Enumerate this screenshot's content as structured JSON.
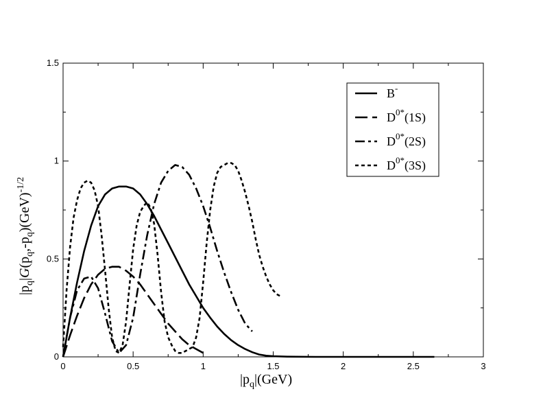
{
  "chart_data": {
    "type": "line",
    "xlabel": {
      "main": "|p",
      "sub": "q",
      "tail": "|(GeV)"
    },
    "ylabel": {
      "a": "|p",
      "a_sub": "q",
      "b": "|",
      "G": "G",
      "c": "(p",
      "c_sub": "q",
      "d": ",-p",
      "d_sub": "q",
      "e": ")(GeV)",
      "e_sup": "-1/2"
    },
    "xlim": [
      0,
      3
    ],
    "ylim": [
      0,
      1.5
    ],
    "x_ticks": [
      "0",
      "0.5",
      "1",
      "1.5",
      "2",
      "2.5",
      "3"
    ],
    "y_ticks": [
      "0",
      "0.5",
      "1",
      "1.5"
    ],
    "grid": false,
    "legend_position": "top-right",
    "series": [
      {
        "name": {
          "base": "B",
          "sup": "-",
          "tail": ""
        },
        "style": "solid",
        "x": [
          0,
          0.05,
          0.1,
          0.15,
          0.2,
          0.25,
          0.3,
          0.35,
          0.4,
          0.45,
          0.5,
          0.55,
          0.6,
          0.65,
          0.7,
          0.75,
          0.8,
          0.85,
          0.9,
          0.95,
          1.0,
          1.05,
          1.1,
          1.15,
          1.2,
          1.25,
          1.3,
          1.35,
          1.4,
          1.45,
          1.5,
          1.6,
          1.8,
          2.0,
          2.3,
          2.65
        ],
        "values": [
          0,
          0.2,
          0.38,
          0.54,
          0.67,
          0.77,
          0.83,
          0.86,
          0.87,
          0.87,
          0.86,
          0.83,
          0.78,
          0.72,
          0.65,
          0.58,
          0.51,
          0.44,
          0.37,
          0.31,
          0.25,
          0.2,
          0.155,
          0.117,
          0.085,
          0.06,
          0.04,
          0.024,
          0.012,
          0.006,
          0.003,
          0.001,
          0,
          0,
          0,
          0
        ]
      },
      {
        "name": {
          "base": "D",
          "sup": "0*",
          "tail": "(1S)"
        },
        "style": "long-dash",
        "x": [
          0,
          0.05,
          0.1,
          0.15,
          0.2,
          0.25,
          0.3,
          0.35,
          0.4,
          0.45,
          0.5,
          0.55,
          0.6,
          0.65,
          0.7,
          0.75,
          0.8,
          0.85,
          0.9,
          0.95,
          1.0
        ],
        "values": [
          0,
          0.11,
          0.21,
          0.3,
          0.37,
          0.42,
          0.45,
          0.46,
          0.46,
          0.44,
          0.41,
          0.37,
          0.32,
          0.27,
          0.22,
          0.17,
          0.13,
          0.09,
          0.06,
          0.04,
          0.02
        ]
      },
      {
        "name": {
          "base": "D",
          "sup": "0*",
          "tail": "(2S)"
        },
        "style": "dash-dot",
        "x": [
          0,
          0.05,
          0.1,
          0.15,
          0.2,
          0.25,
          0.3,
          0.35,
          0.4,
          0.45,
          0.5,
          0.55,
          0.6,
          0.65,
          0.7,
          0.75,
          0.8,
          0.85,
          0.9,
          0.95,
          1.0,
          1.05,
          1.1,
          1.15,
          1.2,
          1.25,
          1.3,
          1.35
        ],
        "values": [
          0,
          0.2,
          0.34,
          0.4,
          0.41,
          0.35,
          0.22,
          0.08,
          0.02,
          0.06,
          0.2,
          0.42,
          0.62,
          0.78,
          0.89,
          0.95,
          0.98,
          0.97,
          0.93,
          0.86,
          0.77,
          0.66,
          0.54,
          0.43,
          0.33,
          0.24,
          0.17,
          0.13
        ]
      },
      {
        "name": {
          "base": "D",
          "sup": "0*",
          "tail": "(3S)"
        },
        "style": "short-dash",
        "x": [
          0,
          0.025,
          0.05,
          0.075,
          0.1,
          0.125,
          0.15,
          0.175,
          0.2,
          0.225,
          0.25,
          0.275,
          0.3,
          0.325,
          0.35,
          0.375,
          0.4,
          0.425,
          0.45,
          0.475,
          0.5,
          0.525,
          0.55,
          0.575,
          0.6,
          0.625,
          0.65,
          0.675,
          0.7,
          0.725,
          0.75,
          0.775,
          0.8,
          0.825,
          0.85,
          0.875,
          0.9,
          0.925,
          0.95,
          0.975,
          1.0,
          1.025,
          1.05,
          1.075,
          1.1,
          1.125,
          1.15,
          1.175,
          1.2,
          1.225,
          1.25,
          1.275,
          1.3,
          1.325,
          1.35,
          1.375,
          1.4,
          1.425,
          1.45,
          1.475,
          1.5,
          1.525,
          1.55
        ],
        "values": [
          0.05,
          0.34,
          0.56,
          0.71,
          0.8,
          0.86,
          0.89,
          0.9,
          0.89,
          0.85,
          0.77,
          0.62,
          0.44,
          0.25,
          0.1,
          0.03,
          0.02,
          0.06,
          0.18,
          0.37,
          0.55,
          0.67,
          0.74,
          0.77,
          0.79,
          0.76,
          0.68,
          0.52,
          0.33,
          0.18,
          0.1,
          0.06,
          0.03,
          0.02,
          0.02,
          0.03,
          0.04,
          0.05,
          0.1,
          0.2,
          0.38,
          0.58,
          0.75,
          0.87,
          0.94,
          0.97,
          0.98,
          0.99,
          0.99,
          0.98,
          0.95,
          0.9,
          0.84,
          0.77,
          0.69,
          0.6,
          0.52,
          0.46,
          0.41,
          0.37,
          0.34,
          0.32,
          0.31
        ]
      }
    ]
  }
}
